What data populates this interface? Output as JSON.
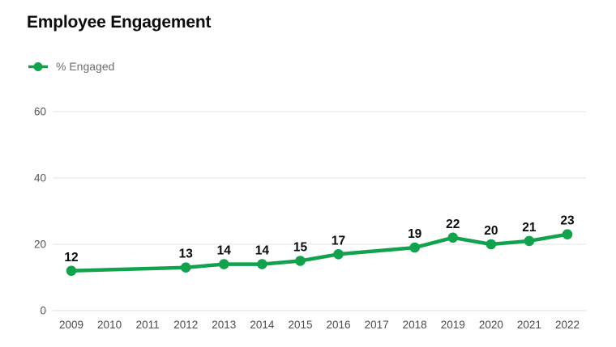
{
  "title": "Employee Engagement",
  "legend": {
    "label": "% Engaged"
  },
  "colors": {
    "series_green": "#12A24D",
    "gridline": "#e3e3e3",
    "baseline": "#d9d9d9",
    "axis_label": "#4b4b4b",
    "ytick_label": "#555555",
    "data_label": "#0b0b0b",
    "legend_text": "#6e6e6e",
    "title_text": "#0b0b0b"
  },
  "chart_data": {
    "type": "line",
    "title": "Employee Engagement",
    "x": [
      2009,
      2010,
      2011,
      2012,
      2013,
      2014,
      2015,
      2016,
      2017,
      2018,
      2019,
      2020,
      2021,
      2022
    ],
    "series": [
      {
        "name": "% Engaged",
        "values": [
          12,
          null,
          null,
          13,
          14,
          14,
          15,
          17,
          null,
          19,
          22,
          20,
          21,
          23
        ]
      }
    ],
    "data_labels": true,
    "marker": "circle",
    "xlabel": "",
    "ylabel": "",
    "ylim": [
      0,
      60
    ],
    "yticks": [
      0,
      20,
      40,
      60
    ],
    "grid": true,
    "legend_position": "top-left"
  }
}
